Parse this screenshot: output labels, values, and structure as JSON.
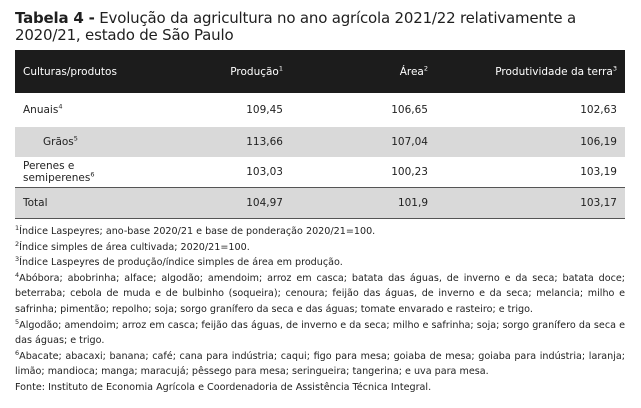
{
  "title": {
    "prefix": "Tabela 4 -",
    "text": "Evolução da agricultura no ano agrícola 2021/22 relativamente a 2020/21, estado de São Paulo"
  },
  "table": {
    "headers": [
      {
        "label": "Culturas/produtos",
        "sup": ""
      },
      {
        "label": "Produção",
        "sup": "1"
      },
      {
        "label": "Área",
        "sup": "2"
      },
      {
        "label": "Produtividade da terra",
        "sup": "3"
      }
    ],
    "rows": [
      {
        "label": "Anuais",
        "sup": "4",
        "producao": "109,45",
        "area": "106,65",
        "produtividade": "102,63"
      },
      {
        "label": "Grãos",
        "sup": "5",
        "producao": "113,66",
        "area": "107,04",
        "produtividade": "106,19"
      },
      {
        "label": "Perenes e semiperenes",
        "sup": "6",
        "producao": "103,03",
        "area": "100,23",
        "produtividade": "103,19"
      },
      {
        "label": "Total",
        "sup": "",
        "producao": "104,97",
        "area": "101,9",
        "produtividade": "103,17"
      }
    ]
  },
  "notes": [
    {
      "sup": "1",
      "text": "Índice Laspeyres; ano-base 2020/21 e base de ponderação 2020/21=100."
    },
    {
      "sup": "2",
      "text": "Índice simples de área cultivada; 2020/21=100."
    },
    {
      "sup": "3",
      "text": "Índice Laspeyres de produção/índice simples de área em produção."
    },
    {
      "sup": "4",
      "text": "Abóbora; abobrinha; alface; algodão; amendoim; arroz em casca; batata das águas, de inverno e da seca; batata doce; beterraba; cebola de muda e de bulbinho (soqueira); cenoura; feijão das águas, de inverno e da seca; melancia; milho e safrinha; pimentão; repolho; soja; sorgo granífero da seca e das águas; tomate envarado e rasteiro; e trigo."
    },
    {
      "sup": "5",
      "text": "Algodão; amendoim; arroz em casca; feijão das águas, de inverno e da seca; milho e safrinha; soja; sorgo granífero da seca e das águas; e trigo."
    },
    {
      "sup": "6",
      "text": "Abacate; abacaxi; banana; café; cana para indústria; caqui; figo para mesa; goiaba de mesa; goiaba para indústria; laranja; limão; mandioca; manga; maracujá; pêssego para mesa; seringueira; tangerina; e uva para mesa."
    }
  ],
  "source": "Fonte: Instituto de Economia Agrícola e Coordenadoria de Assistência Técnica Integral."
}
